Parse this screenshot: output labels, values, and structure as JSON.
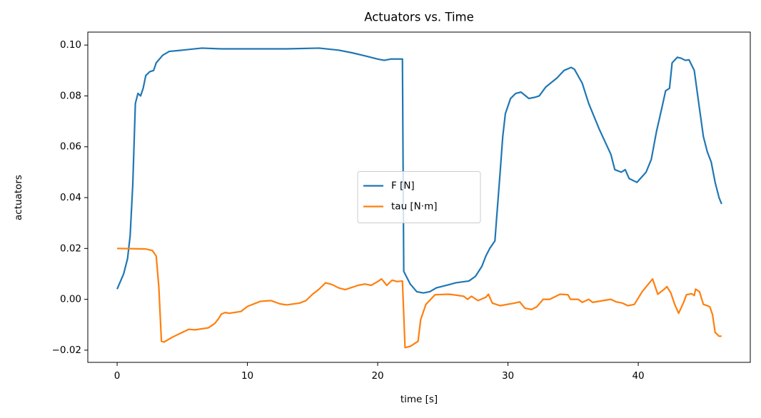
{
  "chart_data": {
    "type": "line",
    "title": "Actuators vs. Time",
    "xlabel": "time [s]",
    "ylabel": "actuators",
    "xlim": [
      -2.25,
      48.6
    ],
    "xticks": [
      0,
      10,
      20,
      30,
      40
    ],
    "ylim": [
      -0.0248,
      0.1051
    ],
    "yticks": [
      {
        "value": -0.02,
        "label": "−0.02"
      },
      {
        "value": 0,
        "label": "0.00"
      },
      {
        "value": 0.02,
        "label": "0.02"
      },
      {
        "value": 0.04,
        "label": "0.04"
      },
      {
        "value": 0.06,
        "label": "0.06"
      },
      {
        "value": 0.08,
        "label": "0.08"
      },
      {
        "value": 0.1,
        "label": "0.10"
      }
    ],
    "legend": "center",
    "grid": false,
    "series": [
      {
        "name": "F [N]",
        "color": "#1f77b4",
        "x": [
          0,
          0.5,
          0.8,
          1.0,
          1.2,
          1.4,
          1.6,
          1.8,
          2.0,
          2.2,
          2.5,
          2.8,
          3.0,
          3.5,
          4.0,
          5,
          6.5,
          8,
          13,
          15.5,
          17,
          18,
          19,
          20,
          20.5,
          21,
          21.9,
          22.0,
          22.5,
          23,
          23.5,
          24,
          24.5,
          25.5,
          26,
          27,
          27.5,
          28,
          28.3,
          28.6,
          29,
          29.1,
          29.4,
          29.6,
          29.8,
          30.2,
          30.6,
          31.0,
          31.6,
          32.1,
          32.4,
          32.9,
          33.75,
          34.3,
          34.85,
          35.1,
          35.7,
          36.2,
          37.0,
          37.9,
          38.2,
          38.7,
          39.0,
          39.3,
          39.9,
          40.6,
          41.0,
          41.4,
          41.8,
          42.1,
          42.4,
          42.6,
          43.0,
          43.3,
          43.6,
          43.9,
          44.3,
          44.7,
          45.0,
          45.3,
          45.6,
          45.9,
          46.2,
          46.4
        ],
        "values": [
          0.004,
          0.01,
          0.016,
          0.025,
          0.045,
          0.077,
          0.081,
          0.08,
          0.083,
          0.088,
          0.0895,
          0.09,
          0.093,
          0.096,
          0.0975,
          0.098,
          0.0988,
          0.0985,
          0.0985,
          0.0988,
          0.098,
          0.097,
          0.0958,
          0.0945,
          0.094,
          0.0945,
          0.0945,
          0.011,
          0.006,
          0.003,
          0.0025,
          0.003,
          0.0045,
          0.0058,
          0.0065,
          0.0072,
          0.009,
          0.013,
          0.017,
          0.02,
          0.023,
          0.03,
          0.05,
          0.064,
          0.073,
          0.079,
          0.081,
          0.0815,
          0.079,
          0.0795,
          0.08,
          0.0835,
          0.087,
          0.09,
          0.0912,
          0.0905,
          0.085,
          0.077,
          0.067,
          0.057,
          0.051,
          0.05,
          0.051,
          0.0475,
          0.046,
          0.05,
          0.055,
          0.066,
          0.075,
          0.082,
          0.083,
          0.093,
          0.0952,
          0.0948,
          0.094,
          0.0942,
          0.09,
          0.075,
          0.064,
          0.058,
          0.054,
          0.046,
          0.04,
          0.0375
        ]
      },
      {
        "name": "tau [N·m]",
        "color": "#ff7f0e",
        "x": [
          0,
          2.2,
          2.7,
          3.0,
          3.2,
          3.4,
          3.6,
          4.2,
          4.8,
          5.5,
          6,
          7,
          7.5,
          7.8,
          8.0,
          8.3,
          8.6,
          9.5,
          10,
          11,
          11.8,
          12.5,
          13,
          14,
          14.5,
          15,
          15.5,
          16,
          16.5,
          17,
          17.5,
          18.5,
          19,
          19.5,
          20,
          20.3,
          20.7,
          21.1,
          21.5,
          21.9,
          22.1,
          22.5,
          23.1,
          23.3,
          23.7,
          24.4,
          25.5,
          26.6,
          26.9,
          27.2,
          27.7,
          28.3,
          28.5,
          28.8,
          29.4,
          30.5,
          30.9,
          31.3,
          31.8,
          32.2,
          32.7,
          33.2,
          34.0,
          34.6,
          34.8,
          35.4,
          35.7,
          36.2,
          36.5,
          37.3,
          37.9,
          38.3,
          38.8,
          39.2,
          39.7,
          40.3,
          41.1,
          41.5,
          42.0,
          42.2,
          42.5,
          42.8,
          43.1,
          43.5,
          43.7,
          44.1,
          44.3,
          44.4,
          44.7,
          45.0,
          45.3,
          45.5,
          45.7,
          45.9,
          46.2,
          46.4
        ],
        "values": [
          0.02,
          0.0198,
          0.0192,
          0.017,
          0.005,
          -0.0165,
          -0.0168,
          -0.015,
          -0.0135,
          -0.0118,
          -0.012,
          -0.0112,
          -0.0095,
          -0.0075,
          -0.0058,
          -0.0052,
          -0.0055,
          -0.0048,
          -0.0028,
          -0.0008,
          -0.0005,
          -0.0018,
          -0.0022,
          -0.0015,
          -0.0005,
          0.002,
          0.004,
          0.0065,
          0.0058,
          0.0045,
          0.0038,
          0.0055,
          0.006,
          0.0055,
          0.007,
          0.008,
          0.0055,
          0.0075,
          0.007,
          0.0072,
          -0.019,
          -0.0185,
          -0.0165,
          -0.008,
          -0.002,
          0.0018,
          0.002,
          0.0012,
          0,
          0.0012,
          -0.0005,
          0.0008,
          0.002,
          -0.0015,
          -0.0025,
          -0.0015,
          -0.001,
          -0.0035,
          -0.004,
          -0.003,
          0,
          0,
          0.002,
          0.0018,
          0,
          0,
          -0.0012,
          0,
          -0.0012,
          -0.0005,
          0,
          -0.001,
          -0.0015,
          -0.0025,
          -0.002,
          0.003,
          0.008,
          0.002,
          0.004,
          0.005,
          0.0025,
          -0.002,
          -0.0055,
          -0.001,
          0.0018,
          0.0022,
          0.0015,
          0.004,
          0.003,
          -0.002,
          -0.0025,
          -0.003,
          -0.006,
          -0.013,
          -0.0145,
          -0.0145
        ]
      }
    ]
  }
}
